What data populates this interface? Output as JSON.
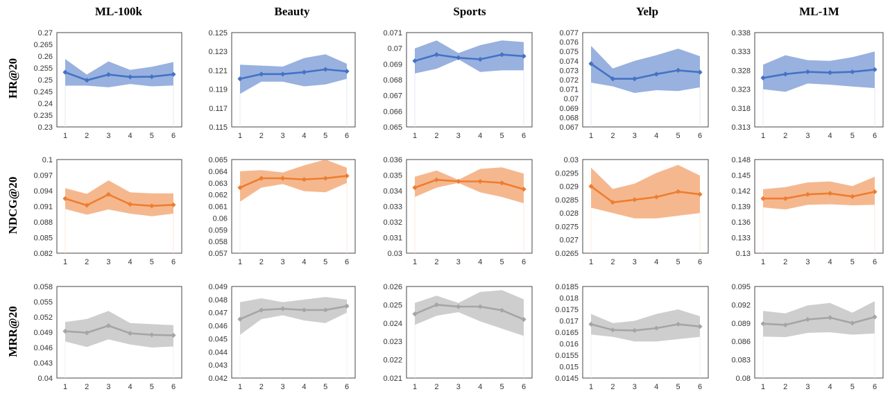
{
  "columns": [
    "ML-100k",
    "Beauty",
    "Sports",
    "Yelp",
    "ML-1M"
  ],
  "rows": [
    "HR@20",
    "NDCG@20",
    "MRR@20"
  ],
  "colors": {
    "HR@20": "#4472C4",
    "NDCG@20": "#ED7D31",
    "MRR@20": "#A5A5A5"
  },
  "chart_data": [
    {
      "type": "line",
      "row": "HR@20",
      "column": "ML-100k",
      "x": [
        1,
        2,
        3,
        4,
        5,
        6
      ],
      "y": [
        0.2532,
        0.2498,
        0.2522,
        0.2512,
        0.2513,
        0.2523
      ],
      "upper": [
        0.2588,
        0.2522,
        0.2578,
        0.2542,
        0.2555,
        0.2575
      ],
      "lower": [
        0.2475,
        0.2475,
        0.2468,
        0.2482,
        0.2472,
        0.2476
      ],
      "ylim": [
        0.23,
        0.27
      ],
      "yticks": [
        "0.27",
        "0.265",
        "0.26",
        "0.255",
        "0.25",
        "0.245",
        "0.24",
        "0.235",
        "0.23"
      ]
    },
    {
      "type": "line",
      "row": "HR@20",
      "column": "Beauty",
      "x": [
        1,
        2,
        3,
        4,
        5,
        6
      ],
      "y": [
        0.1201,
        0.1206,
        0.1206,
        0.1208,
        0.1211,
        0.1209
      ],
      "upper": [
        0.1216,
        0.1215,
        0.1214,
        0.1223,
        0.1227,
        0.1217
      ],
      "lower": [
        0.1185,
        0.1198,
        0.1198,
        0.1193,
        0.1195,
        0.1201
      ],
      "ylim": [
        0.115,
        0.125
      ],
      "yticks": [
        "0.125",
        "0.123",
        "0.121",
        "0.119",
        "0.117",
        "0.115"
      ]
    },
    {
      "type": "line",
      "row": "HR@20",
      "column": "Sports",
      "x": [
        1,
        2,
        3,
        4,
        5,
        6
      ],
      "y": [
        0.0692,
        0.0696,
        0.0694,
        0.0693,
        0.0696,
        0.0695
      ],
      "upper": [
        0.07,
        0.0705,
        0.0697,
        0.0702,
        0.0705,
        0.0704
      ],
      "lower": [
        0.0684,
        0.0687,
        0.0693,
        0.0685,
        0.0686,
        0.0686
      ],
      "ylim": [
        0.065,
        0.071
      ],
      "yticks": [
        "0.071",
        "0.07",
        "0.069",
        "0.068",
        "0.067",
        "0.066",
        "0.065"
      ]
    },
    {
      "type": "line",
      "row": "HR@20",
      "column": "Yelp",
      "x": [
        1,
        2,
        3,
        4,
        5,
        6
      ],
      "y": [
        0.0737,
        0.0721,
        0.0721,
        0.0726,
        0.073,
        0.0728
      ],
      "upper": [
        0.0756,
        0.0732,
        0.074,
        0.0746,
        0.0753,
        0.0745
      ],
      "lower": [
        0.0717,
        0.0713,
        0.0706,
        0.0709,
        0.0708,
        0.0712
      ],
      "ylim": [
        0.067,
        0.077
      ],
      "yticks": [
        "0.077",
        "0.076",
        "0.075",
        "0.074",
        "0.073",
        "0.072",
        "0.071",
        "0.07",
        "0.069",
        "0.068",
        "0.067"
      ]
    },
    {
      "type": "line",
      "row": "HR@20",
      "column": "ML-1M",
      "x": [
        1,
        2,
        3,
        4,
        5,
        6
      ],
      "y": [
        0.326,
        0.327,
        0.3276,
        0.3274,
        0.3276,
        0.3282
      ],
      "upper": [
        0.3295,
        0.332,
        0.3307,
        0.3305,
        0.3315,
        0.333
      ],
      "lower": [
        0.323,
        0.3223,
        0.3245,
        0.3242,
        0.3237,
        0.3233
      ],
      "ylim": [
        0.313,
        0.338
      ],
      "yticks": [
        "0.338",
        "0.333",
        "0.328",
        "0.323",
        "0.318",
        "0.313"
      ]
    },
    {
      "type": "line",
      "row": "NDCG@20",
      "column": "ML-100k",
      "x": [
        1,
        2,
        3,
        4,
        5,
        6
      ],
      "y": [
        0.0925,
        0.0912,
        0.0933,
        0.0914,
        0.0911,
        0.0913
      ],
      "upper": [
        0.0945,
        0.0934,
        0.096,
        0.0937,
        0.0935,
        0.0935
      ],
      "lower": [
        0.0905,
        0.0894,
        0.0904,
        0.0896,
        0.0891,
        0.0896
      ],
      "ylim": [
        0.082,
        0.1
      ],
      "yticks": [
        "0.1",
        "0.097",
        "0.094",
        "0.091",
        "0.088",
        "0.085",
        "0.082"
      ]
    },
    {
      "type": "line",
      "row": "NDCG@20",
      "column": "Beauty",
      "x": [
        1,
        2,
        3,
        4,
        5,
        6
      ],
      "y": [
        0.0626,
        0.0634,
        0.0634,
        0.0633,
        0.0634,
        0.0636
      ],
      "upper": [
        0.064,
        0.0641,
        0.0639,
        0.0645,
        0.065,
        0.0643
      ],
      "lower": [
        0.0614,
        0.0626,
        0.0629,
        0.0623,
        0.0622,
        0.063
      ],
      "ylim": [
        0.057,
        0.065
      ],
      "yticks": [
        "0.065",
        "0.064",
        "0.063",
        "0.062",
        "0.061",
        "0.06",
        "0.059",
        "0.058",
        "0.057"
      ]
    },
    {
      "type": "line",
      "row": "NDCG@20",
      "column": "Sports",
      "x": [
        1,
        2,
        3,
        4,
        5,
        6
      ],
      "y": [
        0.0342,
        0.0347,
        0.0346,
        0.0346,
        0.0345,
        0.0341
      ],
      "upper": [
        0.0349,
        0.0353,
        0.0347,
        0.0354,
        0.0355,
        0.0351
      ],
      "lower": [
        0.0336,
        0.0342,
        0.0345,
        0.0339,
        0.0336,
        0.0332
      ],
      "ylim": [
        0.03,
        0.036
      ],
      "yticks": [
        "0.036",
        "0.035",
        "0.034",
        "0.033",
        "0.032",
        "0.031",
        "0.03"
      ]
    },
    {
      "type": "line",
      "row": "NDCG@20",
      "column": "Yelp",
      "x": [
        1,
        2,
        3,
        4,
        5,
        6
      ],
      "y": [
        0.029,
        0.0284,
        0.0285,
        0.0286,
        0.0288,
        0.0287
      ],
      "upper": [
        0.0297,
        0.0289,
        0.0291,
        0.0295,
        0.0298,
        0.0294
      ],
      "lower": [
        0.0282,
        0.028,
        0.0278,
        0.0278,
        0.0279,
        0.028
      ],
      "ylim": [
        0.0265,
        0.03
      ],
      "yticks": [
        "0.03",
        "0.0295",
        "0.029",
        "0.0285",
        "0.028",
        "0.0275",
        "0.027",
        "0.0265"
      ]
    },
    {
      "type": "line",
      "row": "NDCG@20",
      "column": "ML-1M",
      "x": [
        1,
        2,
        3,
        4,
        5,
        6
      ],
      "y": [
        0.1405,
        0.1405,
        0.1413,
        0.1415,
        0.1409,
        0.1418
      ],
      "upper": [
        0.1423,
        0.1427,
        0.1436,
        0.1438,
        0.1429,
        0.1447
      ],
      "lower": [
        0.1388,
        0.1384,
        0.1393,
        0.1394,
        0.1392,
        0.1393
      ],
      "ylim": [
        0.13,
        0.148
      ],
      "yticks": [
        "0.148",
        "0.145",
        "0.142",
        "0.139",
        "0.136",
        "0.133",
        "0.13"
      ]
    },
    {
      "type": "line",
      "row": "MRR@20",
      "column": "ML-100k",
      "x": [
        1,
        2,
        3,
        4,
        5,
        6
      ],
      "y": [
        0.0492,
        0.0489,
        0.0503,
        0.0488,
        0.0485,
        0.0484
      ],
      "upper": [
        0.051,
        0.0516,
        0.0532,
        0.0508,
        0.0506,
        0.0504
      ],
      "lower": [
        0.0472,
        0.0461,
        0.0476,
        0.0466,
        0.046,
        0.0462
      ],
      "ylim": [
        0.04,
        0.058
      ],
      "yticks": [
        "0.058",
        "0.055",
        "0.052",
        "0.049",
        "0.046",
        "0.043",
        "0.04"
      ]
    },
    {
      "type": "line",
      "row": "MRR@20",
      "column": "Beauty",
      "x": [
        1,
        2,
        3,
        4,
        5,
        6
      ],
      "y": [
        0.0465,
        0.0472,
        0.0473,
        0.0472,
        0.0472,
        0.0475
      ],
      "upper": [
        0.0478,
        0.0481,
        0.0478,
        0.048,
        0.0482,
        0.048
      ],
      "lower": [
        0.0453,
        0.0465,
        0.0468,
        0.0464,
        0.0462,
        0.047
      ],
      "ylim": [
        0.042,
        0.049
      ],
      "yticks": [
        "0.049",
        "0.048",
        "0.047",
        "0.046",
        "0.045",
        "0.044",
        "0.043",
        "0.042"
      ]
    },
    {
      "type": "line",
      "row": "MRR@20",
      "column": "Sports",
      "x": [
        1,
        2,
        3,
        4,
        5,
        6
      ],
      "y": [
        0.0245,
        0.025,
        0.0249,
        0.0249,
        0.0247,
        0.0242
      ],
      "upper": [
        0.0251,
        0.0255,
        0.0251,
        0.0257,
        0.0258,
        0.0253
      ],
      "lower": [
        0.0239,
        0.0244,
        0.0246,
        0.0241,
        0.0237,
        0.0233
      ],
      "ylim": [
        0.021,
        0.026
      ],
      "yticks": [
        "0.026",
        "0.025",
        "0.024",
        "0.023",
        "0.022",
        "0.021"
      ]
    },
    {
      "type": "line",
      "row": "MRR@20",
      "column": "Yelp",
      "x": [
        1,
        2,
        3,
        4,
        5,
        6
      ],
      "y": [
        0.01685,
        0.0166,
        0.01658,
        0.01668,
        0.01685,
        0.01675
      ],
      "upper": [
        0.0173,
        0.0169,
        0.017,
        0.0173,
        0.0175,
        0.0172
      ],
      "lower": [
        0.0164,
        0.0163,
        0.0161,
        0.0161,
        0.0162,
        0.0163
      ],
      "ylim": [
        0.0145,
        0.0185
      ],
      "yticks": [
        "0.0185",
        "0.018",
        "0.0175",
        "0.017",
        "0.0165",
        "0.016",
        "0.0155",
        "0.015",
        "0.0145"
      ]
    },
    {
      "type": "line",
      "row": "MRR@20",
      "column": "ML-1M",
      "x": [
        1,
        2,
        3,
        4,
        5,
        6
      ],
      "y": [
        0.0889,
        0.0887,
        0.0896,
        0.0899,
        0.089,
        0.09
      ],
      "upper": [
        0.091,
        0.0906,
        0.0919,
        0.0923,
        0.0907,
        0.0926
      ],
      "lower": [
        0.0868,
        0.0867,
        0.0874,
        0.0875,
        0.0871,
        0.0873
      ],
      "ylim": [
        0.08,
        0.095
      ],
      "yticks": [
        "0.095",
        "0.092",
        "0.089",
        "0.086",
        "0.083",
        "0.08"
      ]
    }
  ]
}
